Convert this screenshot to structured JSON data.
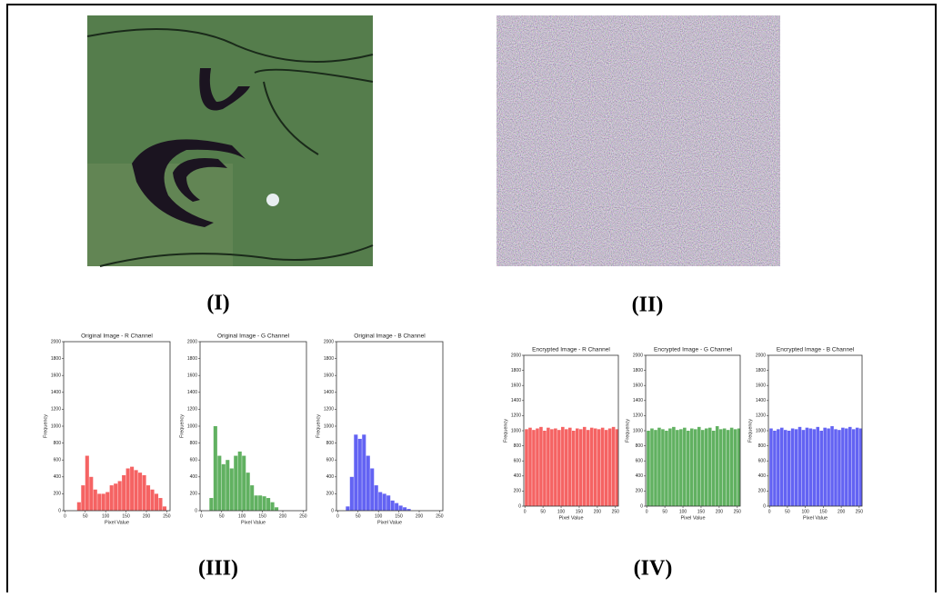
{
  "panel_labels": [
    "(I)",
    "(II)",
    "(III)",
    "(IV)"
  ],
  "chart_data": [
    {
      "type": "histogram",
      "title": "Original Image - R Channel",
      "xlabel": "Pixel Value",
      "ylabel": "Frequency",
      "color": "#f23c3c",
      "bins": [
        0,
        10,
        20,
        30,
        40,
        50,
        60,
        70,
        80,
        90,
        100,
        110,
        120,
        130,
        140,
        150,
        160,
        170,
        180,
        190,
        200,
        210,
        220,
        230,
        240,
        250,
        260
      ],
      "values": [
        0,
        0,
        0,
        100,
        300,
        650,
        400,
        250,
        200,
        200,
        220,
        300,
        320,
        350,
        420,
        500,
        520,
        480,
        450,
        420,
        300,
        250,
        200,
        150,
        50,
        0
      ],
      "xlim": [
        -3,
        258
      ],
      "ylim": [
        0,
        2000
      ],
      "xticks": [
        0,
        50,
        100,
        150,
        200,
        250
      ],
      "yticks": [
        0,
        200,
        400,
        600,
        800,
        1000,
        1200,
        1400,
        1600,
        1800,
        2000
      ]
    },
    {
      "type": "histogram",
      "title": "Original Image - G Channel",
      "xlabel": "Pixel Value",
      "ylabel": "Frequency",
      "color": "#3a9e3a",
      "bins": [
        0,
        10,
        20,
        30,
        40,
        50,
        60,
        70,
        80,
        90,
        100,
        110,
        120,
        130,
        140,
        150,
        160,
        170,
        180,
        190,
        200,
        210,
        220,
        230,
        240,
        250,
        260
      ],
      "values": [
        0,
        0,
        150,
        1000,
        650,
        550,
        600,
        500,
        650,
        700,
        650,
        450,
        300,
        180,
        180,
        170,
        150,
        100,
        40,
        0,
        0,
        0,
        0,
        0,
        0,
        0
      ],
      "xlim": [
        -3,
        258
      ],
      "ylim": [
        0,
        2000
      ],
      "xticks": [
        0,
        50,
        100,
        150,
        200,
        250
      ],
      "yticks": [
        0,
        200,
        400,
        600,
        800,
        1000,
        1200,
        1400,
        1600,
        1800,
        2000
      ]
    },
    {
      "type": "histogram",
      "title": "Original Image - B Channel",
      "xlabel": "Pixel Value",
      "ylabel": "Frequency",
      "color": "#3c3cf0",
      "bins": [
        0,
        10,
        20,
        30,
        40,
        50,
        60,
        70,
        80,
        90,
        100,
        110,
        120,
        130,
        140,
        150,
        160,
        170,
        180,
        190,
        200,
        210,
        220,
        230,
        240,
        250,
        260
      ],
      "values": [
        0,
        0,
        50,
        400,
        900,
        850,
        900,
        650,
        500,
        300,
        220,
        200,
        180,
        120,
        90,
        60,
        40,
        20,
        0,
        0,
        0,
        0,
        0,
        0,
        0,
        0
      ],
      "xlim": [
        -3,
        258
      ],
      "ylim": [
        0,
        2000
      ],
      "xticks": [
        0,
        50,
        100,
        150,
        200,
        250
      ],
      "yticks": [
        0,
        200,
        400,
        600,
        800,
        1000,
        1200,
        1400,
        1600,
        1800,
        2000
      ]
    },
    {
      "type": "histogram",
      "title": "Encrypted Image - R Channel",
      "xlabel": "Pixel Value",
      "ylabel": "Frequency",
      "color": "#f23c3c",
      "bins": [
        0,
        10,
        20,
        30,
        40,
        50,
        60,
        70,
        80,
        90,
        100,
        110,
        120,
        130,
        140,
        150,
        160,
        170,
        180,
        190,
        200,
        210,
        220,
        230,
        240,
        250,
        260
      ],
      "values": [
        1020,
        1040,
        1010,
        1030,
        1050,
        1000,
        1040,
        1020,
        1030,
        1010,
        1050,
        1020,
        1040,
        1000,
        1030,
        1020,
        1050,
        1010,
        1040,
        1030,
        1020,
        1040,
        1010,
        1030,
        1050,
        1020
      ],
      "xlim": [
        -3,
        258
      ],
      "ylim": [
        0,
        2000
      ],
      "xticks": [
        0,
        50,
        100,
        150,
        200,
        250
      ],
      "yticks": [
        0,
        200,
        400,
        600,
        800,
        1000,
        1200,
        1400,
        1600,
        1800,
        2000
      ]
    },
    {
      "type": "histogram",
      "title": "Encrypted Image - G Channel",
      "xlabel": "Pixel Value",
      "ylabel": "Frequency",
      "color": "#3a9e3a",
      "bins": [
        0,
        10,
        20,
        30,
        40,
        50,
        60,
        70,
        80,
        90,
        100,
        110,
        120,
        130,
        140,
        150,
        160,
        170,
        180,
        190,
        200,
        210,
        220,
        230,
        240,
        250,
        260
      ],
      "values": [
        1000,
        1030,
        1010,
        1040,
        1020,
        1000,
        1030,
        1050,
        1010,
        1020,
        1040,
        1000,
        1030,
        1020,
        1050,
        1010,
        1030,
        1040,
        1000,
        1060,
        1020,
        1030,
        1010,
        1040,
        1020,
        1030
      ],
      "xlim": [
        -3,
        258
      ],
      "ylim": [
        0,
        2000
      ],
      "xticks": [
        0,
        50,
        100,
        150,
        200,
        250
      ],
      "yticks": [
        0,
        200,
        400,
        600,
        800,
        1000,
        1200,
        1400,
        1600,
        1800,
        2000
      ]
    },
    {
      "type": "histogram",
      "title": "Encrypted Image - B Channel",
      "xlabel": "Pixel Value",
      "ylabel": "Frequency",
      "color": "#3c3cf0",
      "bins": [
        0,
        10,
        20,
        30,
        40,
        50,
        60,
        70,
        80,
        90,
        100,
        110,
        120,
        130,
        140,
        150,
        160,
        170,
        180,
        190,
        200,
        210,
        220,
        230,
        240,
        250,
        260
      ],
      "values": [
        1030,
        1000,
        1020,
        1040,
        1010,
        1000,
        1030,
        1020,
        1050,
        1010,
        1040,
        1030,
        1020,
        1050,
        1000,
        1040,
        1030,
        1060,
        1020,
        1010,
        1040,
        1030,
        1050,
        1020,
        1040,
        1030
      ],
      "xlim": [
        -3,
        258
      ],
      "ylim": [
        0,
        2000
      ],
      "xticks": [
        0,
        50,
        100,
        150,
        200,
        250
      ],
      "yticks": [
        0,
        200,
        400,
        600,
        800,
        1000,
        1200,
        1400,
        1600,
        1800,
        2000
      ]
    }
  ]
}
